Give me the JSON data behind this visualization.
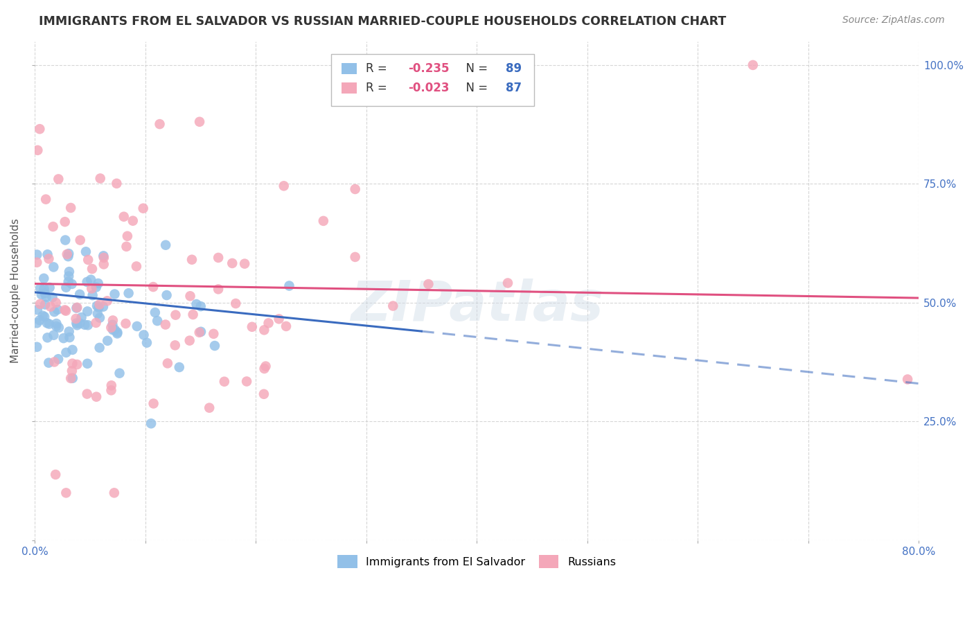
{
  "title": "IMMIGRANTS FROM EL SALVADOR VS RUSSIAN MARRIED-COUPLE HOUSEHOLDS CORRELATION CHART",
  "source": "Source: ZipAtlas.com",
  "ylabel": "Married-couple Households",
  "xmin": 0.0,
  "xmax": 0.8,
  "ymin": 0.0,
  "ymax": 1.05,
  "blue_color": "#92c0e8",
  "pink_color": "#f4a7b9",
  "line_blue": "#3a6bbf",
  "line_pink": "#e05080",
  "watermark": "ZIPatlas",
  "seed": 12345,
  "blue_n": 89,
  "pink_n": 87,
  "blue_r": -0.235,
  "pink_r": -0.023,
  "legend_r1_val": "-0.235",
  "legend_n1_val": "89",
  "legend_r2_val": "-0.023",
  "legend_n2_val": "87",
  "r_color": "#e05080",
  "n_color": "#3a6bbf"
}
